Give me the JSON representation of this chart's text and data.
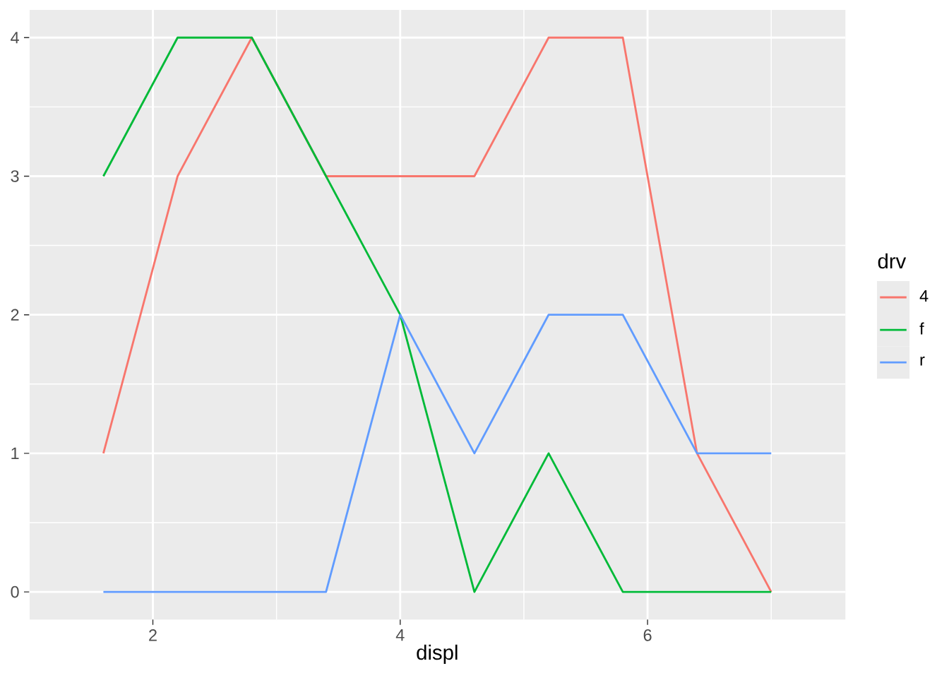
{
  "chart_data": {
    "type": "line",
    "xlabel": "displ",
    "legend_title": "drv",
    "x": [
      1.6,
      2.2,
      2.8,
      3.4,
      4.0,
      4.6,
      5.2,
      5.8,
      6.4,
      7.0
    ],
    "series": [
      {
        "name": "4",
        "color": "#f8766d",
        "values": [
          1,
          3,
          4,
          3,
          3,
          3,
          4,
          4,
          1,
          0
        ]
      },
      {
        "name": "f",
        "color": "#00ba38",
        "values": [
          3,
          4,
          4,
          3,
          2,
          0,
          1,
          0,
          0,
          0
        ]
      },
      {
        "name": "r",
        "color": "#619cff",
        "values": [
          0,
          0,
          0,
          0,
          2,
          1,
          2,
          2,
          1,
          1
        ]
      }
    ],
    "xlim": [
      1.0,
      7.6
    ],
    "ylim": [
      -0.2,
      4.2
    ],
    "xticks": [
      2,
      4,
      6
    ],
    "yticks": [
      0,
      1,
      2,
      3,
      4
    ],
    "grid": true,
    "legend": "right",
    "line_style": "solid"
  }
}
